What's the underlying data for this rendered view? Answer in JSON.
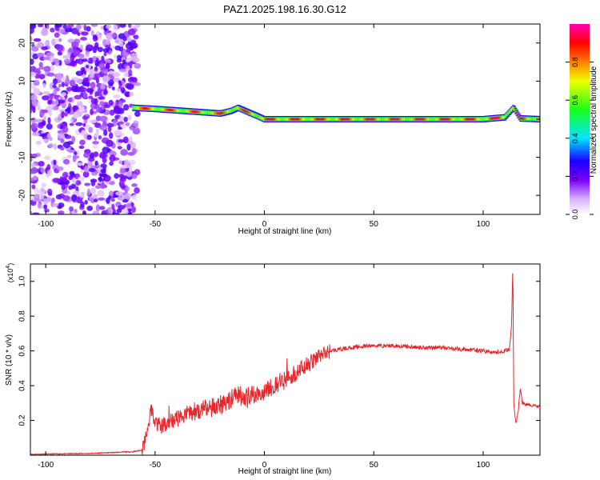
{
  "figure_title": "PAZ1.2025.198.16.30.G12",
  "colors": {
    "axis": "#000000",
    "snr_line": "#e8262b"
  },
  "chart_data": [
    {
      "type": "heatmap",
      "title": "PAZ1.2025.198.16.30.G12",
      "xlabel": "Height of straight line (km)",
      "ylabel": "Frequency (Hz)",
      "xlim": [
        -107,
        126
      ],
      "ylim": [
        -25,
        25
      ],
      "xticks": [
        -100,
        -50,
        0,
        50,
        100
      ],
      "yticks": [
        -20,
        -10,
        0,
        10,
        20
      ],
      "colorbar": {
        "label": "Normalized spectral amplitude",
        "range": [
          0,
          1
        ],
        "ticks": [
          "0.0",
          "0.2",
          "0.4",
          "0.6",
          "0.8"
        ],
        "colormap": "rainbow (white-violet-blue-cyan-green-yellow-red-magenta)"
      },
      "noise_region": {
        "x_from": -107,
        "x_to": -60,
        "level": "low amplitude, scattered"
      },
      "ridge": [
        {
          "x": -60,
          "f": 3.0
        },
        {
          "x": -50,
          "f": 2.7
        },
        {
          "x": -40,
          "f": 2.3
        },
        {
          "x": -30,
          "f": 1.9
        },
        {
          "x": -20,
          "f": 1.5
        },
        {
          "x": -15,
          "f": 2.2
        },
        {
          "x": -12,
          "f": 3.0
        },
        {
          "x": -8,
          "f": 2.0
        },
        {
          "x": -3,
          "f": 0.8
        },
        {
          "x": 0,
          "f": 0.0
        },
        {
          "x": 10,
          "f": 0.0
        },
        {
          "x": 50,
          "f": 0.0
        },
        {
          "x": 100,
          "f": 0.0
        },
        {
          "x": 110,
          "f": 0.5
        },
        {
          "x": 114,
          "f": 3.0
        },
        {
          "x": 117,
          "f": 0.2
        },
        {
          "x": 126,
          "f": 0.0
        }
      ]
    },
    {
      "type": "line",
      "title": "",
      "xlabel": "Height of straight line (km)",
      "ylabel": "SNR (10 * v/v)",
      "scale_label": "(x10",
      "scale_exp": "4",
      "scale_suffix": ")",
      "xlim": [
        -107,
        126
      ],
      "ylim": [
        0,
        1.1
      ],
      "xticks": [
        -100,
        -50,
        0,
        50,
        100
      ],
      "yticks": [
        "0.2",
        "0.4",
        "0.6",
        "0.8",
        "1.0"
      ],
      "series": [
        {
          "x": [
            -107,
            -80,
            -60,
            -56,
            -55,
            -53,
            -52,
            -50,
            -48,
            -45,
            -40,
            -35,
            -30,
            -25,
            -20,
            -15,
            -12,
            -10,
            -5,
            0,
            5,
            10,
            15,
            20,
            25,
            30,
            40,
            50,
            60,
            70,
            80,
            90,
            100,
            105,
            110,
            112,
            113,
            113.6,
            114,
            115,
            116,
            117,
            118,
            120,
            126
          ],
          "y": [
            0.005,
            0.01,
            0.02,
            0.03,
            0.06,
            0.16,
            0.27,
            0.2,
            0.16,
            0.18,
            0.21,
            0.24,
            0.26,
            0.27,
            0.29,
            0.33,
            0.36,
            0.32,
            0.34,
            0.37,
            0.4,
            0.44,
            0.48,
            0.52,
            0.57,
            0.6,
            0.62,
            0.63,
            0.63,
            0.62,
            0.62,
            0.61,
            0.6,
            0.59,
            0.6,
            0.61,
            0.74,
            1.1,
            0.3,
            0.18,
            0.25,
            0.38,
            0.3,
            0.29,
            0.28
          ]
        }
      ]
    }
  ]
}
